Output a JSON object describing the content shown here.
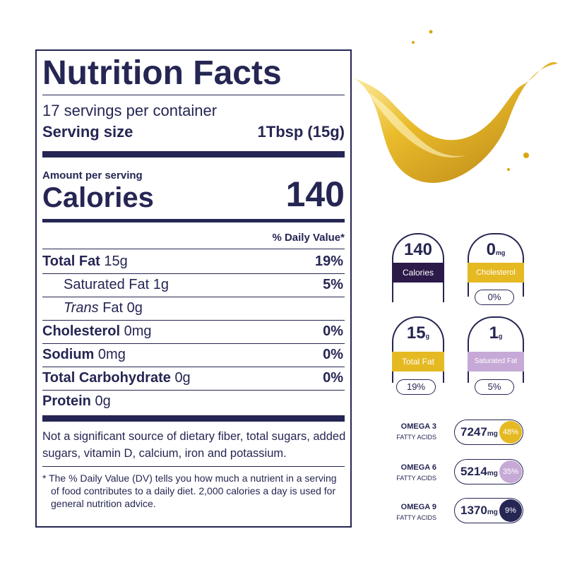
{
  "label": {
    "title": "Nutrition Facts",
    "servings": "17 servings per container",
    "serving_size_label": "Serving size",
    "serving_size_value": "1Tbsp (15g)",
    "amount_per_serving": "Amount per serving",
    "calories_label": "Calories",
    "calories_value": "140",
    "dv_header": "% Daily Value*",
    "rows": [
      {
        "name": "Total Fat",
        "amount": "15g",
        "dv": "19%"
      },
      {
        "name": "Saturated Fat",
        "amount": "1g",
        "dv": "5%"
      },
      {
        "prefix": "Trans",
        "name": "Fat",
        "amount": "0g"
      },
      {
        "name": "Cholesterol",
        "amount": "0mg",
        "dv": "0%"
      },
      {
        "name": "Sodium",
        "amount": "0mg",
        "dv": "0%"
      },
      {
        "name": "Total Carbohydrate",
        "amount": "0g",
        "dv": "0%"
      },
      {
        "name": "Protein",
        "amount": "0g"
      }
    ],
    "note": "Not a significant source of dietary fiber, total sugars, added sugars, vitamin D, calcium, iron and potassium.",
    "footnote": "* The % Daily Value (DV) tells you how much a nutrient in a serving of food contributes to a daily diet. 2,000 calories a day is used for general nutrition advice."
  },
  "badges": [
    {
      "value": "140",
      "label": "Calories"
    },
    {
      "value": "0",
      "unit": "mg",
      "label": "Cholesterol",
      "dv": "0%"
    },
    {
      "value": "15",
      "unit": "g",
      "label": "Total Fat",
      "dv": "19%"
    },
    {
      "value": "1",
      "unit": "g",
      "label": "Saturated Fat",
      "dv": "5%"
    }
  ],
  "omega": [
    {
      "name": "OMEGA 3",
      "sub": "FATTY ACIDS",
      "value": "7247",
      "unit": "mg",
      "pct": "48%"
    },
    {
      "name": "OMEGA 6",
      "sub": "FATTY ACIDS",
      "value": "5214",
      "unit": "mg",
      "pct": "35%"
    },
    {
      "name": "OMEGA 9",
      "sub": "FATTY ACIDS",
      "value": "1370",
      "unit": "mg",
      "pct": "9%"
    }
  ]
}
